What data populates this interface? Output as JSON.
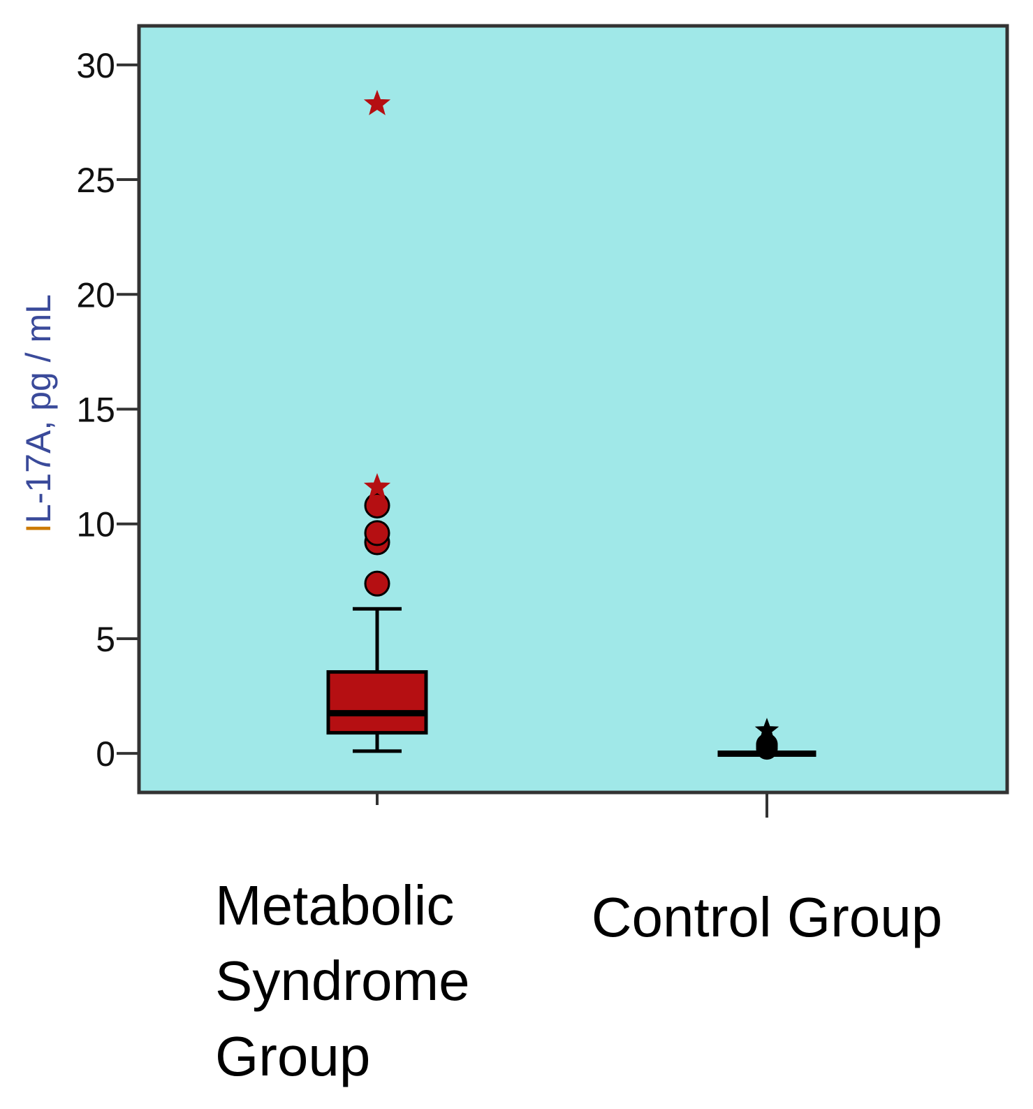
{
  "chart_data": {
    "type": "boxplot",
    "title": "",
    "xlabel": "",
    "ylabel": "IL-17A, pg / mL",
    "ylim": [
      -1.7,
      31.7
    ],
    "yticks": [
      0,
      5,
      10,
      15,
      20,
      25,
      30
    ],
    "grid": false,
    "colors": {
      "plot_background": "#a0e8e8",
      "frame": "#333333",
      "ylabel_prefix": "#cc7a00",
      "ylabel_main": "#3a4a9a"
    },
    "categories": [
      {
        "label": "Metabolic Syndrome Group",
        "label_lines": [
          "Metabolic",
          "Syndrome",
          "Group"
        ],
        "color": "#b50f12",
        "whisker_low": 0.1,
        "q1": 0.9,
        "median": 1.75,
        "q3": 3.55,
        "whisker_high": 6.3,
        "outliers": [
          7.4,
          9.2,
          9.6,
          10.8
        ],
        "extremes": [
          11.6,
          28.3
        ]
      },
      {
        "label": "Control Group",
        "label_lines": [
          "Control Group"
        ],
        "color": "#000000",
        "whisker_low": 0.0,
        "q1": 0.0,
        "median": 0.0,
        "q3": 0.05,
        "whisker_high": 0.05,
        "outliers": [
          0.2,
          0.3,
          0.35,
          0.4
        ],
        "extremes": [
          1.0
        ]
      }
    ]
  }
}
